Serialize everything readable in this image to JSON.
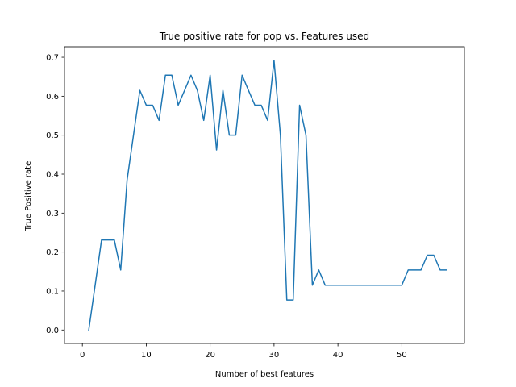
{
  "chart_data": {
    "type": "line",
    "title": "True positive rate for pop vs. Features used",
    "xlabel": "Number of best features",
    "ylabel": "True Positive rate",
    "xlim": [
      -2.8,
      59.8
    ],
    "ylim": [
      -0.0346,
      0.727
    ],
    "xticks": [
      0,
      10,
      20,
      30,
      40,
      50
    ],
    "yticks": [
      0.0,
      0.1,
      0.2,
      0.3,
      0.4,
      0.5,
      0.6,
      0.7
    ],
    "xtick_labels": [
      "0",
      "10",
      "20",
      "30",
      "40",
      "50"
    ],
    "ytick_labels": [
      "0.0",
      "0.1",
      "0.2",
      "0.3",
      "0.4",
      "0.5",
      "0.6",
      "0.7"
    ],
    "grid": false,
    "legend": "none",
    "colors": {
      "line": "#1f77b4",
      "axes": "#000000",
      "background": "#ffffff"
    },
    "series": [
      {
        "x": [
          1,
          2,
          3,
          4,
          5,
          6,
          7,
          8,
          9,
          10,
          11,
          12,
          13,
          14,
          15,
          16,
          17,
          18,
          19,
          20,
          21,
          22,
          23,
          24,
          25,
          26,
          27,
          28,
          29,
          30,
          31,
          32,
          33,
          34,
          35,
          36,
          37,
          38,
          39,
          40,
          41,
          42,
          43,
          44,
          45,
          46,
          47,
          48,
          49,
          50,
          51,
          52,
          53,
          54,
          55,
          56,
          57
        ],
        "values": [
          0.0,
          0.115,
          0.231,
          0.231,
          0.231,
          0.154,
          0.385,
          0.5,
          0.615,
          0.577,
          0.577,
          0.538,
          0.654,
          0.654,
          0.577,
          0.615,
          0.654,
          0.615,
          0.538,
          0.654,
          0.462,
          0.615,
          0.5,
          0.5,
          0.654,
          0.615,
          0.577,
          0.577,
          0.538,
          0.692,
          0.5,
          0.077,
          0.077,
          0.577,
          0.5,
          0.115,
          0.154,
          0.115,
          0.115,
          0.115,
          0.115,
          0.115,
          0.115,
          0.115,
          0.115,
          0.115,
          0.115,
          0.115,
          0.115,
          0.115,
          0.154,
          0.154,
          0.154,
          0.192,
          0.192,
          0.154,
          0.154
        ]
      }
    ]
  }
}
